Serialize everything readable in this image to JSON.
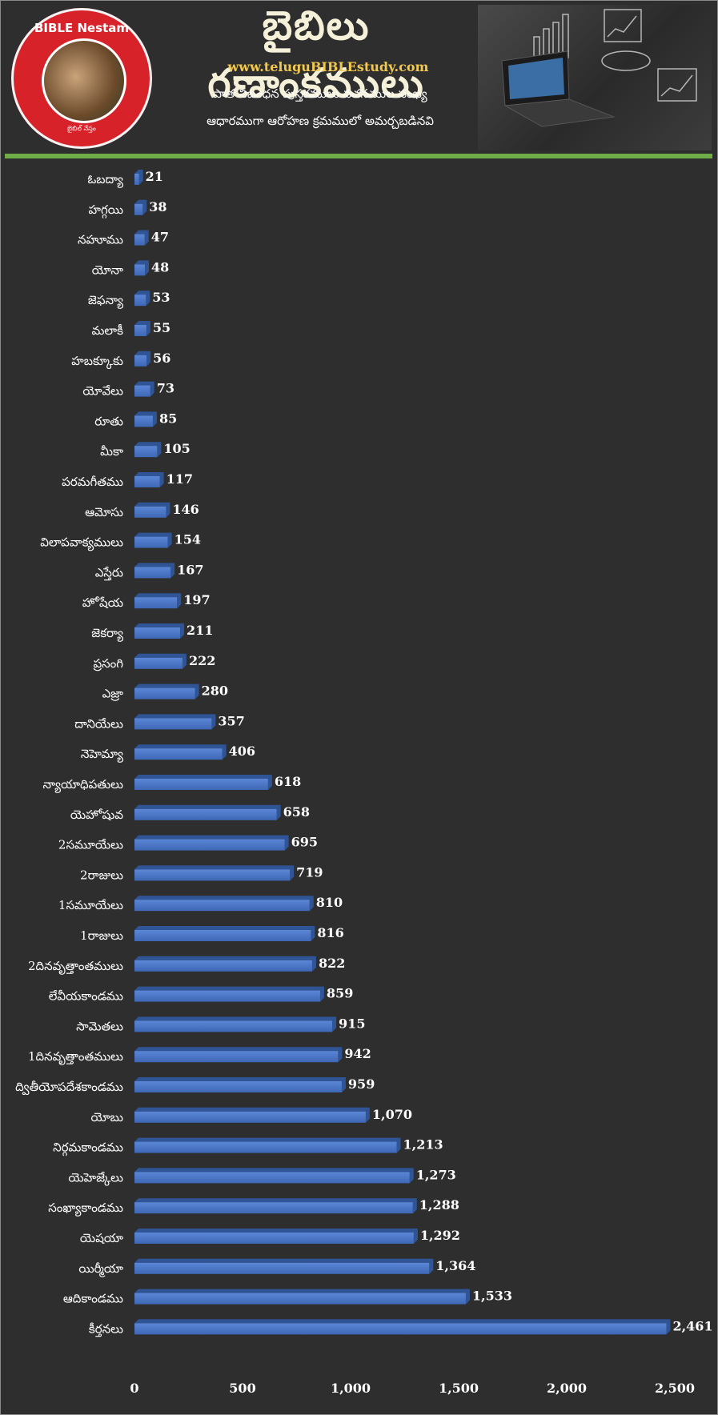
{
  "header": {
    "title": "బైబిలు గణాంకములు",
    "url": "www.teluguBIBLEstudy.com",
    "subtitle_line1": "పాత నిబంధన పుస్తకములు వచనముల సంఖ్య",
    "subtitle_line2": "ఆధారముగా ఆరోహణ క్రమములో అమర్చబడినవి",
    "logo_text_top": "BIBLE Nestam",
    "logo_text_bottom": "బైబిల్ నేస్తం",
    "logo_icon": "bible-nestam-logo-icon",
    "photo_icon": "laptop-charts-photo-icon"
  },
  "colors": {
    "background": "#2e2e2e",
    "bar": "#4472c4",
    "bar_top": "#5b86d6",
    "bar_shadow": "#2f5597",
    "accent_green": "#6fac47",
    "url": "#f2c94c",
    "text": "#ffffff"
  },
  "chart_data": {
    "type": "bar",
    "orientation": "horizontal",
    "categories": [
      "ఓబద్యా",
      "హగ్గయి",
      "నహూము",
      "యోనా",
      "జెఫన్యా",
      "మలాకీ",
      "హబక్కూకు",
      "యోవేలు",
      "రూతు",
      "మీకా",
      "పరమగీతము",
      "ఆమోసు",
      "విలాపవాక్యములు",
      "ఎస్తేరు",
      "హోషేయ",
      "జెకర్యా",
      "ప్రసంగి",
      "ఎజ్రా",
      "దానియేలు",
      "నెహెమ్యా",
      "న్యాయాధిపతులు",
      "యెహోషువ",
      "2సమూయేలు",
      "2రాజులు",
      "1సమూయేలు",
      "1రాజులు",
      "2దినవృత్తాంతములు",
      "లేవీయకాండము",
      "సామెతలు",
      "1దినవృత్తాంతములు",
      "ద్వితీయోపదేశకాండము",
      "యోబు",
      "నిర్గమకాండము",
      "యెహెజ్కేలు",
      "సంఖ్యాకాండము",
      "యెషయా",
      "యిర్మీయా",
      "ఆదికాండము",
      "కీర్తనలు"
    ],
    "values": [
      21,
      38,
      47,
      48,
      53,
      55,
      56,
      73,
      85,
      105,
      117,
      146,
      154,
      167,
      197,
      211,
      222,
      280,
      357,
      406,
      618,
      658,
      695,
      719,
      810,
      816,
      822,
      859,
      915,
      942,
      959,
      1070,
      1213,
      1273,
      1288,
      1292,
      1364,
      1533,
      2461
    ],
    "value_labels": [
      "21",
      "38",
      "47",
      "48",
      "53",
      "55",
      "56",
      "73",
      "85",
      "105",
      "117",
      "146",
      "154",
      "167",
      "197",
      "211",
      "222",
      "280",
      "357",
      "406",
      "618",
      "658",
      "695",
      "719",
      "810",
      "816",
      "822",
      "859",
      "915",
      "942",
      "959",
      "1,070",
      "1,213",
      "1,273",
      "1,288",
      "1,292",
      "1,364",
      "1,533",
      "2,461"
    ],
    "xlim": [
      0,
      2500
    ],
    "xticks": [
      0,
      500,
      1000,
      1500,
      2000,
      2500
    ],
    "xtick_labels": [
      "0",
      "500",
      "1,000",
      "1,500",
      "2,000",
      "2,500"
    ],
    "grid": false,
    "legend": "none",
    "title": "",
    "xlabel": "",
    "ylabel": ""
  }
}
